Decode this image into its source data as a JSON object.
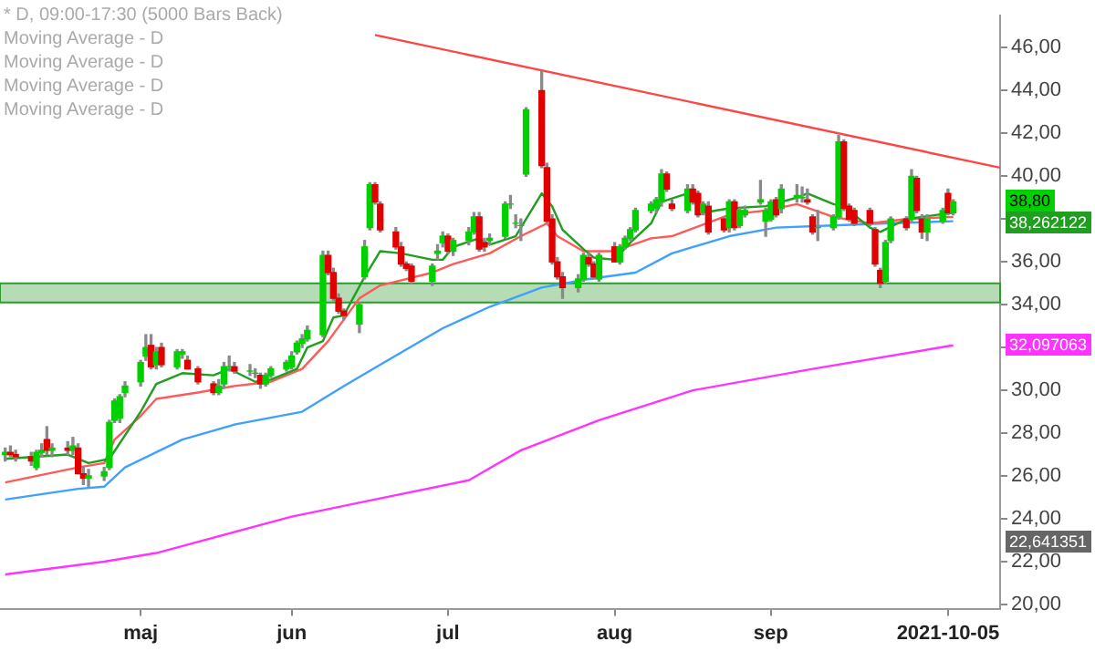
{
  "chart_data": {
    "type": "candlestick",
    "title": "* D, 09:00-17:30 (5000 Bars Back)",
    "x": [
      "2021-04-07",
      "2021-04-08",
      "2021-04-09",
      "2021-04-12",
      "2021-04-13",
      "2021-04-14",
      "2021-04-15",
      "2021-04-16",
      "2021-04-19",
      "2021-04-20",
      "2021-04-21",
      "2021-04-22",
      "2021-04-23",
      "2021-04-26",
      "2021-04-27",
      "2021-04-28",
      "2021-04-29",
      "2021-04-30",
      "2021-05-03",
      "2021-05-04",
      "2021-05-05",
      "2021-05-06",
      "2021-05-07",
      "2021-05-10",
      "2021-05-11",
      "2021-05-12",
      "2021-05-14",
      "2021-05-17",
      "2021-05-18",
      "2021-05-19",
      "2021-05-20",
      "2021-05-21",
      "2021-05-24",
      "2021-05-25",
      "2021-05-26",
      "2021-05-27",
      "2021-05-28",
      "2021-05-31",
      "2021-06-01",
      "2021-06-02",
      "2021-06-03",
      "2021-06-04",
      "2021-06-07",
      "2021-06-08",
      "2021-06-09",
      "2021-06-10",
      "2021-06-11",
      "2021-06-14",
      "2021-06-15",
      "2021-06-16",
      "2021-06-17",
      "2021-06-18",
      "2021-06-21",
      "2021-06-22",
      "2021-06-23",
      "2021-06-24",
      "2021-06-28",
      "2021-06-29",
      "2021-06-30",
      "2021-07-01",
      "2021-07-02",
      "2021-07-05",
      "2021-07-06",
      "2021-07-07",
      "2021-07-08",
      "2021-07-09",
      "2021-07-12",
      "2021-07-13",
      "2021-07-14",
      "2021-07-15",
      "2021-07-16",
      "2021-07-19",
      "2021-07-20",
      "2021-07-21",
      "2021-07-22",
      "2021-07-23",
      "2021-07-26",
      "2021-07-27",
      "2021-07-28",
      "2021-07-29",
      "2021-07-30",
      "2021-08-02",
      "2021-08-03",
      "2021-08-04",
      "2021-08-05",
      "2021-08-06",
      "2021-08-09",
      "2021-08-10",
      "2021-08-11",
      "2021-08-12",
      "2021-08-13",
      "2021-08-16",
      "2021-08-17",
      "2021-08-18",
      "2021-08-19",
      "2021-08-20",
      "2021-08-23",
      "2021-08-24",
      "2021-08-25",
      "2021-08-26",
      "2021-08-27",
      "2021-08-30",
      "2021-08-31",
      "2021-09-01",
      "2021-09-02",
      "2021-09-03",
      "2021-09-06",
      "2021-09-07",
      "2021-09-08",
      "2021-09-09",
      "2021-09-10",
      "2021-09-13",
      "2021-09-14",
      "2021-09-15",
      "2021-09-16",
      "2021-09-17",
      "2021-09-20",
      "2021-09-21",
      "2021-09-22",
      "2021-09-23",
      "2021-09-24",
      "2021-09-27",
      "2021-09-28",
      "2021-09-29",
      "2021-09-30",
      "2021-10-01",
      "2021-10-04",
      "2021-10-05",
      "2021-10-06"
    ],
    "ohlc": [
      [
        27.0,
        27.3,
        26.7,
        27.1
      ],
      [
        27.1,
        27.4,
        26.9,
        27.0
      ],
      [
        27.0,
        27.2,
        26.7,
        26.9
      ],
      [
        26.9,
        27.1,
        26.5,
        26.7
      ],
      [
        26.4,
        27.2,
        26.3,
        27.1
      ],
      [
        27.1,
        27.5,
        26.9,
        27.2
      ],
      [
        27.7,
        28.3,
        27.0,
        27.2
      ],
      [
        27.2,
        27.5,
        26.9,
        27.3
      ],
      [
        27.3,
        27.6,
        27.0,
        27.2
      ],
      [
        27.2,
        27.8,
        27.0,
        27.4
      ],
      [
        27.3,
        27.5,
        26.1,
        26.1
      ],
      [
        26.1,
        26.4,
        25.6,
        25.9
      ],
      [
        25.9,
        26.3,
        25.5,
        26.0
      ],
      [
        26.0,
        26.4,
        25.8,
        26.2
      ],
      [
        26.4,
        28.6,
        26.3,
        28.5
      ],
      [
        28.6,
        29.6,
        28.5,
        29.5
      ],
      [
        28.7,
        29.8,
        28.5,
        29.7
      ],
      [
        29.9,
        30.4,
        29.7,
        30.2
      ],
      [
        30.4,
        31.4,
        30.2,
        31.3
      ],
      [
        31.6,
        32.6,
        31.4,
        32.0
      ],
      [
        32.1,
        32.6,
        31.0,
        31.1
      ],
      [
        31.2,
        32.0,
        31.0,
        31.8
      ],
      [
        32.0,
        32.2,
        31.1,
        31.2
      ],
      [
        31.1,
        31.9,
        31.0,
        31.8
      ],
      [
        31.7,
        31.9,
        31.5,
        31.8
      ],
      [
        31.4,
        31.6,
        31.0,
        31.0
      ],
      [
        31.0,
        31.1,
        30.3,
        30.4
      ],
      [
        30.3,
        30.4,
        29.8,
        29.9
      ],
      [
        29.9,
        30.5,
        29.8,
        30.2
      ],
      [
        30.3,
        31.3,
        30.1,
        31.1
      ],
      [
        31.1,
        31.6,
        30.9,
        31.1
      ],
      [
        31.1,
        31.3,
        30.8,
        30.9
      ],
      [
        30.9,
        31.2,
        30.7,
        30.9
      ],
      [
        30.8,
        31.0,
        30.6,
        30.8
      ],
      [
        30.7,
        30.8,
        30.1,
        30.3
      ],
      [
        30.3,
        30.8,
        30.2,
        30.7
      ],
      [
        30.7,
        31.1,
        30.6,
        31.0
      ],
      [
        31.0,
        31.4,
        30.9,
        31.3
      ],
      [
        31.1,
        31.8,
        31.0,
        31.6
      ],
      [
        31.8,
        32.3,
        31.7,
        32.2
      ],
      [
        32.2,
        32.6,
        32.0,
        32.4
      ],
      [
        32.4,
        33.0,
        32.3,
        32.8
      ],
      [
        32.6,
        36.5,
        32.5,
        36.3
      ],
      [
        36.3,
        36.5,
        35.4,
        35.5
      ],
      [
        35.5,
        35.7,
        34.2,
        34.3
      ],
      [
        34.3,
        34.5,
        33.6,
        33.7
      ],
      [
        33.7,
        33.8,
        33.3,
        33.5
      ],
      [
        33.1,
        34.1,
        32.7,
        34.0
      ],
      [
        35.3,
        37.0,
        35.2,
        36.7
      ],
      [
        37.6,
        39.7,
        37.5,
        39.6
      ],
      [
        39.6,
        39.7,
        38.7,
        38.8
      ],
      [
        38.7,
        38.8,
        37.4,
        37.5
      ],
      [
        37.4,
        37.6,
        36.6,
        36.7
      ],
      [
        36.7,
        36.9,
        35.8,
        35.9
      ],
      [
        35.9,
        36.0,
        35.6,
        35.7
      ],
      [
        35.8,
        35.9,
        35.0,
        35.1
      ],
      [
        35.1,
        35.9,
        34.9,
        35.8
      ],
      [
        36.4,
        36.8,
        36.1,
        36.5
      ],
      [
        36.9,
        37.4,
        36.7,
        37.2
      ],
      [
        37.2,
        37.3,
        36.4,
        36.5
      ],
      [
        36.5,
        37.1,
        36.3,
        37.0
      ],
      [
        37.0,
        37.6,
        36.8,
        37.4
      ],
      [
        37.4,
        38.3,
        37.3,
        38.1
      ],
      [
        38.1,
        38.3,
        36.5,
        36.6
      ],
      [
        36.9,
        37.1,
        36.5,
        36.7
      ],
      [
        37.0,
        37.3,
        36.8,
        37.1
      ],
      [
        37.2,
        38.8,
        37.1,
        38.7
      ],
      [
        38.7,
        39.1,
        38.5,
        38.7
      ],
      [
        37.8,
        38.2,
        37.6,
        37.8
      ],
      [
        37.7,
        38.0,
        37.0,
        37.7
      ],
      [
        40.1,
        43.2,
        40.0,
        43.1
      ],
      [
        44.0,
        44.9,
        40.4,
        40.5
      ],
      [
        40.4,
        40.6,
        37.8,
        37.9
      ],
      [
        38.0,
        38.2,
        35.9,
        36.0
      ],
      [
        36.0,
        36.2,
        35.2,
        35.3
      ],
      [
        35.3,
        35.5,
        34.3,
        34.8
      ],
      [
        34.8,
        35.4,
        34.6,
        35.2
      ],
      [
        35.2,
        36.4,
        35.1,
        36.3
      ],
      [
        36.2,
        36.4,
        35.8,
        35.9
      ],
      [
        35.9,
        36.0,
        35.2,
        35.3
      ],
      [
        35.2,
        36.4,
        35.1,
        36.3
      ],
      [
        36.7,
        36.9,
        36.0,
        36.0
      ],
      [
        36.0,
        36.8,
        35.9,
        36.7
      ],
      [
        36.7,
        37.2,
        36.6,
        37.1
      ],
      [
        37.1,
        37.6,
        37.0,
        37.5
      ],
      [
        37.5,
        38.5,
        37.4,
        38.4
      ],
      [
        38.4,
        38.8,
        38.3,
        38.7
      ],
      [
        38.5,
        39.0,
        38.3,
        38.9
      ],
      [
        38.8,
        40.3,
        38.6,
        40.1
      ],
      [
        40.1,
        40.2,
        39.3,
        39.4
      ],
      [
        38.7,
        38.9,
        38.4,
        38.5
      ],
      [
        38.4,
        39.6,
        38.3,
        39.4
      ],
      [
        39.4,
        39.6,
        38.7,
        38.8
      ],
      [
        39.2,
        39.3,
        38.1,
        38.2
      ],
      [
        38.3,
        38.8,
        38.2,
        38.7
      ],
      [
        38.6,
        38.8,
        37.3,
        37.4
      ],
      [
        38.0,
        38.1,
        37.4,
        37.5
      ],
      [
        37.6,
        38.9,
        37.4,
        38.8
      ],
      [
        38.8,
        38.9,
        37.5,
        37.6
      ],
      [
        37.7,
        38.5,
        37.6,
        38.4
      ],
      [
        38.2,
        38.6,
        38.1,
        38.4
      ],
      [
        38.8,
        39.8,
        38.7,
        38.9
      ],
      [
        37.9,
        38.5,
        37.2,
        38.4
      ],
      [
        38.0,
        38.9,
        37.9,
        38.8
      ],
      [
        38.9,
        39.0,
        38.1,
        38.2
      ],
      [
        38.5,
        39.6,
        38.3,
        39.4
      ],
      [
        39.0,
        39.6,
        38.8,
        39.1
      ],
      [
        39.0,
        39.5,
        38.8,
        39.0
      ],
      [
        38.9,
        39.4,
        38.7,
        38.8
      ],
      [
        38.1,
        38.2,
        37.3,
        37.4
      ],
      [
        37.6,
        38.4,
        37.0,
        37.6
      ],
      [
        37.6,
        38.2,
        37.5,
        38.1
      ],
      [
        38.1,
        41.9,
        38.0,
        41.6
      ],
      [
        41.6,
        41.7,
        38.4,
        38.5
      ],
      [
        38.6,
        38.7,
        37.9,
        38.0
      ],
      [
        38.4,
        38.5,
        37.7,
        37.8
      ],
      [
        38.4,
        38.5,
        37.7,
        37.8
      ],
      [
        37.5,
        37.6,
        35.8,
        35.9
      ],
      [
        35.6,
        35.7,
        34.8,
        35.0
      ],
      [
        35.1,
        37.0,
        35.0,
        36.9
      ],
      [
        37.0,
        38.1,
        36.9,
        38.0
      ],
      [
        38.0,
        38.1,
        37.5,
        37.6
      ],
      [
        38.0,
        40.3,
        37.9,
        40.0
      ],
      [
        39.9,
        40.0,
        38.3,
        38.4
      ],
      [
        38.0,
        38.2,
        37.1,
        37.4
      ],
      [
        37.4,
        38.2,
        37.0,
        38.0
      ],
      [
        37.9,
        38.5,
        37.8,
        38.4
      ],
      [
        39.2,
        39.4,
        38.2,
        38.3
      ],
      [
        38.3,
        38.9,
        38.2,
        38.8
      ]
    ],
    "series": [
      {
        "type": "line",
        "color": "#1f9e1f",
        "x": [
          "2021-04-07",
          "2021-04-19",
          "2021-04-23",
          "2021-04-27",
          "2021-05-03",
          "2021-05-06",
          "2021-05-11",
          "2021-05-17",
          "2021-05-20",
          "2021-05-25",
          "2021-05-28",
          "2021-06-02",
          "2021-06-04",
          "2021-06-07",
          "2021-06-09",
          "2021-06-11",
          "2021-06-15",
          "2021-06-18",
          "2021-06-22",
          "2021-06-28",
          "2021-06-30",
          "2021-07-02",
          "2021-07-07",
          "2021-07-09",
          "2021-07-14",
          "2021-07-19",
          "2021-07-21",
          "2021-07-23",
          "2021-07-27",
          "2021-07-29",
          "2021-08-02",
          "2021-08-05",
          "2021-08-09",
          "2021-08-11",
          "2021-08-16",
          "2021-08-19",
          "2021-08-24",
          "2021-08-31",
          "2021-09-06",
          "2021-09-08",
          "2021-09-13",
          "2021-09-15",
          "2021-09-20",
          "2021-09-22",
          "2021-09-27",
          "2021-09-30",
          "2021-10-06"
        ],
        "values": [
          26.8,
          27.0,
          26.6,
          26.8,
          29.0,
          30.3,
          30.8,
          30.7,
          31.0,
          30.4,
          30.5,
          31.0,
          32.0,
          32.3,
          33.4,
          33.5,
          35.3,
          36.5,
          36.4,
          36.1,
          36.1,
          36.7,
          37.1,
          36.8,
          37.2,
          39.2,
          38.6,
          37.5,
          36.6,
          36.2,
          36.1,
          36.9,
          37.8,
          38.8,
          39.2,
          38.3,
          38.5,
          38.6,
          39.0,
          39.2,
          38.7,
          38.6,
          37.6,
          37.4,
          38.0,
          38.1,
          38.3
        ]
      },
      {
        "type": "line",
        "color": "#ff5a5a",
        "x": [
          "2021-04-07",
          "2021-04-21",
          "2021-04-26",
          "2021-04-28",
          "2021-05-03",
          "2021-05-06",
          "2021-05-14",
          "2021-05-21",
          "2021-05-28",
          "2021-06-03",
          "2021-06-08",
          "2021-06-14",
          "2021-06-18",
          "2021-06-28",
          "2021-07-02",
          "2021-07-09",
          "2021-07-15",
          "2021-07-20",
          "2021-07-22",
          "2021-07-27",
          "2021-08-02",
          "2021-08-09",
          "2021-08-13",
          "2021-08-24",
          "2021-08-31",
          "2021-09-06",
          "2021-09-13",
          "2021-09-20",
          "2021-09-27",
          "2021-10-06"
        ],
        "values": [
          25.7,
          26.4,
          26.6,
          27.7,
          28.8,
          29.6,
          29.9,
          30.2,
          30.4,
          31.0,
          32.3,
          34.3,
          34.9,
          35.5,
          35.9,
          36.4,
          37.2,
          37.8,
          37.2,
          36.5,
          36.5,
          37.1,
          37.2,
          38.2,
          38.4,
          38.7,
          38.1,
          37.8,
          38.0,
          38.1
        ]
      },
      {
        "type": "line",
        "color": "#3ea0ff",
        "x": [
          "2021-04-07",
          "2021-04-21",
          "2021-04-26",
          "2021-04-30",
          "2021-05-11",
          "2021-05-21",
          "2021-06-03",
          "2021-06-11",
          "2021-06-18",
          "2021-06-30",
          "2021-07-09",
          "2021-07-19",
          "2021-07-28",
          "2021-08-06",
          "2021-08-13",
          "2021-08-24",
          "2021-09-02",
          "2021-09-13",
          "2021-09-23",
          "2021-10-06"
        ],
        "values": [
          24.9,
          25.4,
          25.5,
          26.4,
          27.7,
          28.4,
          29.0,
          30.2,
          31.2,
          32.9,
          33.9,
          34.8,
          35.2,
          35.5,
          36.4,
          37.2,
          37.6,
          37.7,
          37.8,
          37.9
        ]
      },
      {
        "type": "line",
        "color": "#ff33ff",
        "x": [
          "2021-04-07",
          "2021-04-26",
          "2021-05-06",
          "2021-06-01",
          "2021-06-15",
          "2021-07-05",
          "2021-07-15",
          "2021-07-30",
          "2021-08-17",
          "2021-09-09",
          "2021-10-06"
        ],
        "values": [
          21.4,
          22.0,
          22.4,
          24.1,
          24.8,
          25.8,
          27.2,
          28.6,
          30.0,
          31.0,
          32.1
        ]
      },
      {
        "type": "line",
        "color": "#ff4444",
        "x": [
          "2021-06-17",
          "2021-10-15"
        ],
        "values": [
          46.6,
          40.4
        ]
      }
    ],
    "bands": [
      {
        "axis": "y",
        "from": 34.1,
        "to": 35.0,
        "color": "#2e9b2e"
      }
    ],
    "xlim": [
      "2021-04-06",
      "2021-10-15"
    ],
    "xticks": [
      {
        "value": "2021-05-03",
        "label": "maj"
      },
      {
        "value": "2021-06-01",
        "label": "jun"
      },
      {
        "value": "2021-07-01",
        "label": "jul"
      },
      {
        "value": "2021-08-02",
        "label": "aug"
      },
      {
        "value": "2021-09-01",
        "label": "sep"
      },
      {
        "value": "2021-10-05",
        "label": "2021-10-05"
      }
    ],
    "ylim": [
      19.8,
      47.5
    ],
    "yticks": [
      {
        "value": 20,
        "label": "20,00"
      },
      {
        "value": 22,
        "label": "22,00"
      },
      {
        "value": 24,
        "label": "24,00"
      },
      {
        "value": 26,
        "label": "26,00"
      },
      {
        "value": 28,
        "label": "28,00"
      },
      {
        "value": 30,
        "label": "30,00"
      },
      {
        "value": 32,
        "label": null
      },
      {
        "value": 34,
        "label": "34,00"
      },
      {
        "value": 36,
        "label": "36,00"
      },
      {
        "value": 38,
        "label": null
      },
      {
        "value": 40,
        "label": "40,00"
      },
      {
        "value": 42,
        "label": "42,00"
      },
      {
        "value": 44,
        "label": "44,00"
      },
      {
        "value": 46,
        "label": "46,00"
      }
    ],
    "annotations": [
      "Moving Average - D",
      "Moving Average - D",
      "Moving Average - D",
      "Moving Average - D",
      "38,80",
      "38,262122",
      "32,097063",
      "22,641351"
    ]
  }
}
